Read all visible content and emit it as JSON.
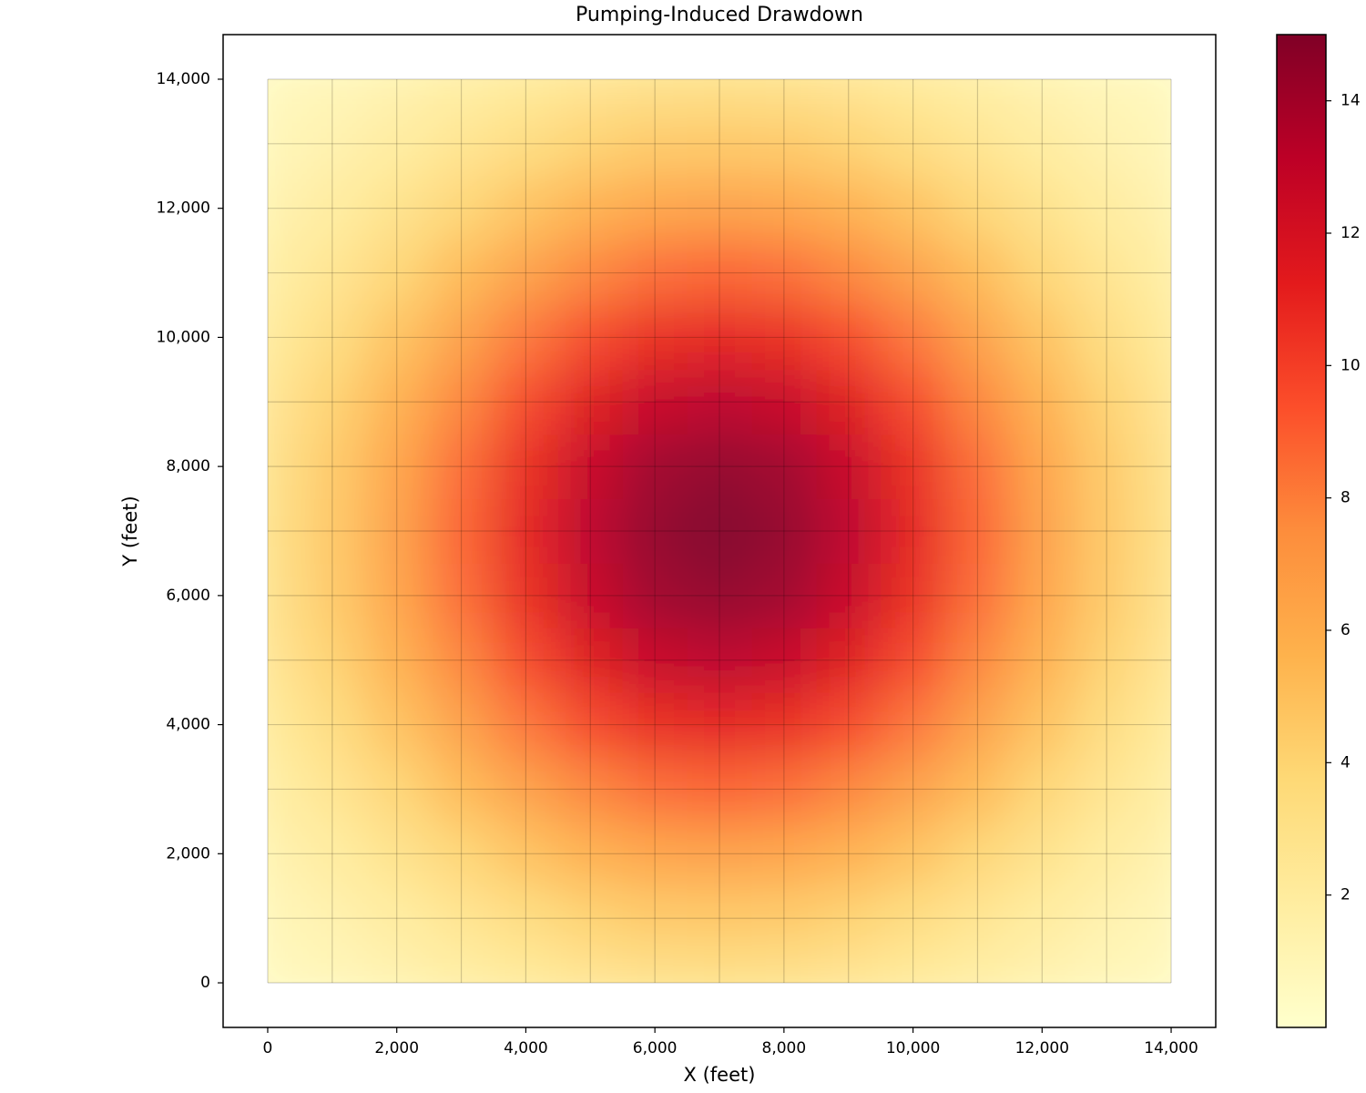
{
  "chart_data": {
    "type": "heatmap",
    "title": "Pumping-Induced Drawdown",
    "x_label": "X (feet)",
    "y_label": "Y (feet)",
    "x": [
      0,
      1000,
      2000,
      3000,
      4000,
      5000,
      6000,
      7000,
      8000,
      9000,
      10000,
      11000,
      12000,
      13000,
      14000
    ],
    "y": [
      0,
      1000,
      2000,
      3000,
      4000,
      5000,
      6000,
      7000,
      8000,
      9000,
      10000,
      11000,
      12000,
      13000,
      14000
    ],
    "z": [
      [
        0.6,
        0.9,
        1.3,
        1.8,
        2.2,
        2.6,
        2.9,
        3.0,
        2.9,
        2.6,
        2.2,
        1.8,
        1.3,
        0.9,
        0.6
      ],
      [
        0.9,
        1.4,
        2.0,
        2.7,
        3.4,
        4.1,
        4.5,
        4.6,
        4.5,
        4.1,
        3.4,
        2.7,
        2.0,
        1.4,
        0.9
      ],
      [
        1.3,
        2.0,
        2.9,
        3.9,
        4.9,
        5.8,
        6.4,
        6.6,
        6.4,
        5.8,
        4.9,
        3.9,
        2.9,
        2.0,
        1.3
      ],
      [
        1.8,
        2.7,
        3.9,
        5.3,
        6.6,
        7.8,
        8.6,
        8.9,
        8.6,
        7.8,
        6.6,
        5.3,
        3.9,
        2.7,
        1.8
      ],
      [
        2.2,
        3.4,
        4.9,
        6.6,
        8.3,
        9.8,
        10.8,
        11.2,
        10.8,
        9.8,
        8.3,
        6.6,
        4.9,
        3.4,
        2.2
      ],
      [
        2.6,
        4.1,
        5.8,
        7.8,
        9.8,
        11.5,
        12.7,
        13.2,
        12.7,
        11.5,
        9.8,
        7.8,
        5.8,
        4.1,
        2.6
      ],
      [
        2.9,
        4.5,
        6.4,
        8.6,
        10.8,
        12.7,
        14.1,
        14.5,
        14.1,
        12.7,
        10.8,
        8.6,
        6.4,
        4.5,
        2.9
      ],
      [
        3.0,
        4.6,
        6.6,
        8.9,
        11.2,
        13.2,
        14.5,
        15.0,
        14.5,
        13.2,
        11.2,
        8.9,
        6.6,
        4.6,
        3.0
      ],
      [
        2.9,
        4.5,
        6.4,
        8.6,
        10.8,
        12.7,
        14.1,
        14.5,
        14.1,
        12.7,
        10.8,
        8.6,
        6.4,
        4.5,
        2.9
      ],
      [
        2.6,
        4.1,
        5.8,
        7.8,
        9.8,
        11.5,
        12.7,
        13.2,
        12.7,
        11.5,
        9.8,
        7.8,
        5.8,
        4.1,
        2.6
      ],
      [
        2.2,
        3.4,
        4.9,
        6.6,
        8.3,
        9.8,
        10.8,
        11.2,
        10.8,
        9.8,
        8.3,
        6.6,
        4.9,
        3.4,
        2.2
      ],
      [
        1.8,
        2.7,
        3.9,
        5.3,
        6.6,
        7.8,
        8.6,
        8.9,
        8.6,
        7.8,
        6.6,
        5.3,
        3.9,
        2.7,
        1.8
      ],
      [
        1.3,
        2.0,
        2.9,
        3.9,
        4.9,
        5.8,
        6.4,
        6.6,
        6.4,
        5.8,
        4.9,
        3.9,
        2.9,
        2.0,
        1.3
      ],
      [
        0.9,
        1.4,
        2.0,
        2.7,
        3.4,
        4.1,
        4.5,
        4.6,
        4.5,
        4.1,
        3.4,
        2.7,
        2.0,
        1.4,
        0.9
      ],
      [
        0.6,
        0.9,
        1.3,
        1.8,
        2.2,
        2.6,
        2.9,
        3.0,
        2.9,
        2.6,
        2.2,
        1.8,
        1.3,
        0.9,
        0.6
      ]
    ],
    "colormap": [
      "#ffffcc",
      "#ffeda0",
      "#fed976",
      "#feb24c",
      "#fd8d3c",
      "#fc4e2a",
      "#e31a1c",
      "#bd0026",
      "#800026"
    ],
    "clim": [
      0,
      15
    ],
    "cticks": [
      2,
      4,
      6,
      8,
      10,
      12,
      14
    ],
    "xlim": [
      -691,
      14691
    ],
    "ylim": [
      -691,
      14691
    ],
    "xticks": [
      0,
      {
        "value": 2000,
        "label": "2,000"
      },
      {
        "value": 4000,
        "label": "4,000"
      },
      {
        "value": 6000,
        "label": "6,000"
      },
      {
        "value": 8000,
        "label": "8,000"
      },
      {
        "value": 10000,
        "label": "10,000"
      },
      {
        "value": 12000,
        "label": "12,000"
      },
      {
        "value": 14000,
        "label": "14,000"
      }
    ],
    "yticks": [
      0,
      {
        "value": 2000,
        "label": "2,000"
      },
      {
        "value": 4000,
        "label": "4,000"
      },
      {
        "value": 6000,
        "label": "6,000"
      },
      {
        "value": 8000,
        "label": "8,000"
      },
      {
        "value": 10000,
        "label": "10,000"
      },
      {
        "value": 12000,
        "label": "12,000"
      },
      {
        "value": 14000,
        "label": "14,000"
      }
    ],
    "grid": true
  }
}
